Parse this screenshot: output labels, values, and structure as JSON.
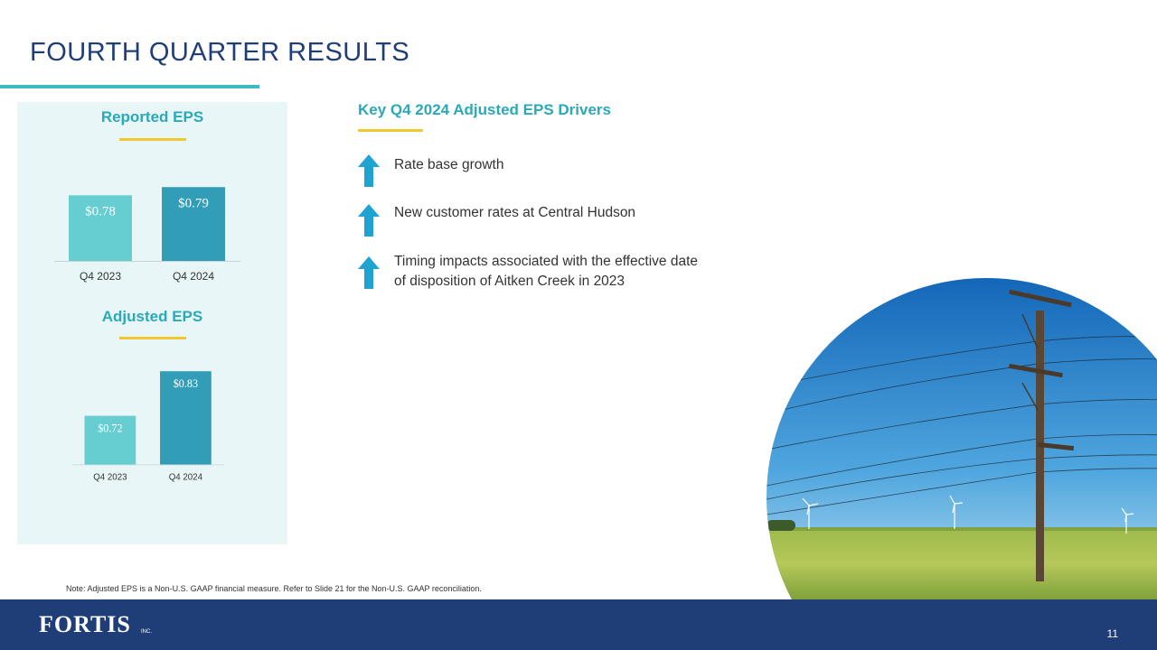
{
  "header": {
    "title": "FOURTH QUARTER RESULTS"
  },
  "chart_data": [
    {
      "type": "bar",
      "title": "Reported EPS",
      "categories": [
        "Q4 2023",
        "Q4 2024"
      ],
      "values": [
        0.78,
        0.79
      ],
      "value_labels": [
        "$0.78",
        "$0.79"
      ],
      "ylim": [
        0.7,
        0.82
      ],
      "colors": [
        "#66cdd1",
        "#329db6"
      ],
      "xlabel": "",
      "ylabel": ""
    },
    {
      "type": "bar",
      "title": "Adjusted EPS",
      "categories": [
        "Q4 2023",
        "Q4 2024"
      ],
      "values": [
        0.72,
        0.83
      ],
      "value_labels": [
        "$0.72",
        "$0.83"
      ],
      "ylim": [
        0.6,
        0.86
      ],
      "colors": [
        "#66cdd1",
        "#329db6"
      ],
      "xlabel": "",
      "ylabel": ""
    }
  ],
  "drivers": {
    "title": "Key Q4 2024 Adjusted EPS Drivers",
    "items": [
      {
        "text": "Rate base growth",
        "direction": "up"
      },
      {
        "text": "New customer rates at Central Hudson",
        "direction": "up"
      },
      {
        "text": "Timing impacts associated with the effective date of disposition of Aitken Creek in 2023",
        "direction": "up"
      }
    ],
    "arrow_color": "#1fa3d0"
  },
  "note": "Note: Adjusted EPS is a Non-U.S. GAAP financial measure. Refer to Slide 21 for the Non-U.S. GAAP reconciliation.",
  "footer": {
    "logo_text": "FORTIS",
    "logo_suffix": "INC.",
    "page_number": "11",
    "background_color": "#1f3e78"
  }
}
